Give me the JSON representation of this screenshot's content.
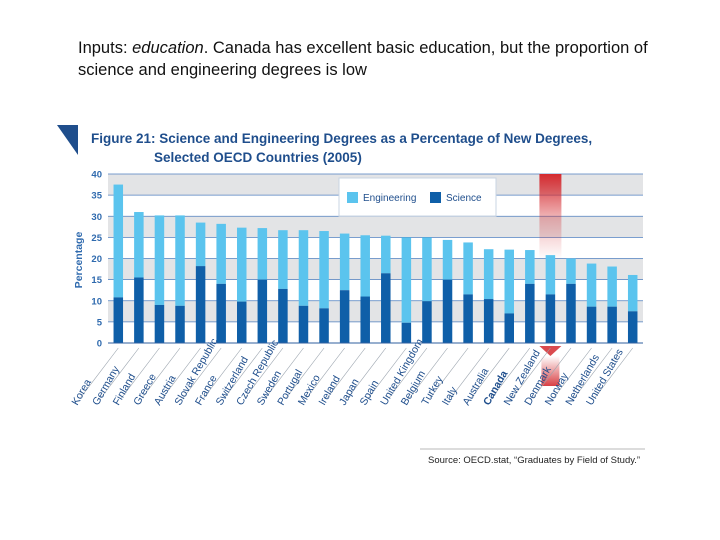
{
  "heading": {
    "prefix": "Inputs: ",
    "italic": "education",
    "rest": ". Canada has excellent basic education, but the proportion of science and engineering degrees is low"
  },
  "colors": {
    "engineering": "#5bc4ee",
    "science": "#0f5fa8",
    "title": "#1f4e8c",
    "band": "#e3e4e6",
    "highlight": "#d42a2f"
  },
  "chart_data": {
    "type": "bar",
    "stacked": true,
    "title_line1": "Figure 21:  Science and Engineering Degrees as a Percentage of New Degrees,",
    "title_line2": "Selected OECD Countries (2005)",
    "ylabel": "Percentage",
    "ylim": [
      0,
      40
    ],
    "yticks": [
      0,
      5,
      10,
      15,
      20,
      25,
      30,
      35,
      40
    ],
    "grid": true,
    "legend_position": "top-center",
    "categories": [
      "Korea",
      "Germany",
      "Finland",
      "Greece",
      "Austria",
      "Slovak Republic",
      "France",
      "Switzerland",
      "Czech Republic",
      "Sweden",
      "Portugal",
      "Mexico",
      "Ireland",
      "Japan",
      "Spain",
      "United Kingdom",
      "Belgium",
      "Turkey",
      "Italy",
      "Australia",
      "Canada",
      "New Zealand",
      "Denmark",
      "Norway",
      "Netherlands",
      "United States"
    ],
    "highlighted_category": "Canada",
    "series": [
      {
        "name": "Science",
        "values": [
          10.8,
          15.5,
          9,
          8.8,
          18.2,
          14,
          9.8,
          15,
          12.8,
          8.8,
          8.2,
          12.5,
          11,
          16.5,
          4.8,
          9.9,
          15,
          11.5,
          10.4,
          7,
          14,
          11.5,
          14,
          8.6,
          8.6,
          7.5
        ]
      },
      {
        "name": "Engineering",
        "values": [
          26.7,
          15.5,
          21.2,
          21.4,
          10.3,
          14.2,
          17.5,
          12.2,
          13.9,
          17.9,
          18.3,
          13.4,
          14.5,
          8.9,
          20.2,
          15.1,
          9.4,
          12.3,
          11.8,
          15.1,
          8,
          9.3,
          6,
          10.2,
          9.5,
          8.6
        ]
      }
    ],
    "source": "Source: OECD.stat, “Graduates by Field of Study.”"
  }
}
